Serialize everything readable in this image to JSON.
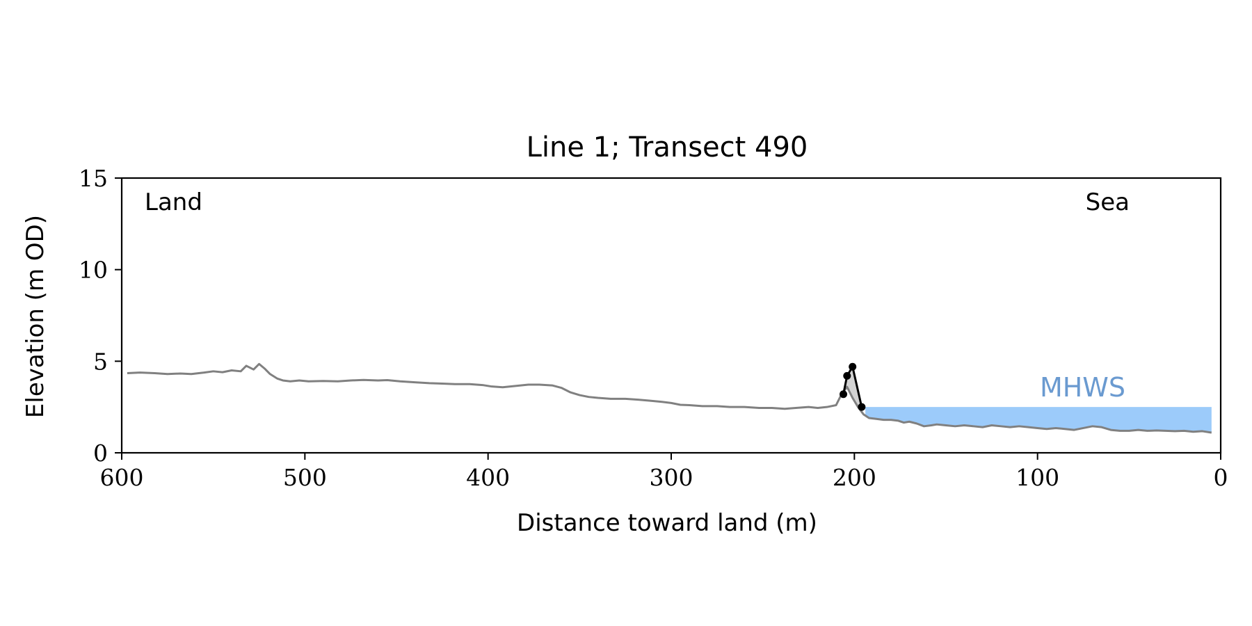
{
  "chart_data": {
    "type": "line",
    "title": "Line 1; Transect 490",
    "xlabel": "Distance toward land (m)",
    "ylabel": "Elevation (m OD)",
    "xlim": [
      600,
      0
    ],
    "ylim": [
      0,
      15
    ],
    "x_ticks": [
      600,
      500,
      400,
      300,
      200,
      100,
      0
    ],
    "y_ticks": [
      0,
      5,
      10,
      15
    ],
    "x_tick_labels": [
      "600",
      "500",
      "400",
      "300",
      "200",
      "100",
      "0"
    ],
    "y_tick_labels": [
      "0",
      "5",
      "10",
      "15"
    ],
    "grid": false,
    "legend": "none",
    "annotations": {
      "land": "Land",
      "sea": "Sea",
      "mhws": "MHWS"
    },
    "mhws_level": 2.5,
    "mhws_x_range": [
      5,
      194
    ],
    "colors": {
      "profile": "#808080",
      "dune": "#000000",
      "dune_fill": "#d3d3d3",
      "water": "#9ccbfa",
      "mhws_text": "#6a9ad0"
    },
    "series": [
      {
        "role": "profile",
        "x": [
          597,
          590,
          582,
          575,
          568,
          562,
          555,
          550,
          545,
          540,
          535,
          532,
          528,
          525,
          522,
          519,
          515,
          512,
          508,
          503,
          498,
          490,
          482,
          475,
          468,
          460,
          455,
          448,
          440,
          432,
          425,
          418,
          410,
          403,
          398,
          392,
          385,
          378,
          372,
          365,
          360,
          355,
          350,
          345,
          340,
          333,
          325,
          318,
          312,
          305,
          300,
          295,
          290,
          283,
          275,
          268,
          260,
          252,
          245,
          238,
          232,
          225,
          220,
          215,
          210,
          207,
          204,
          201,
          198,
          195,
          192,
          188,
          184,
          180,
          176,
          173,
          170,
          166,
          162,
          158,
          155,
          150,
          145,
          140,
          135,
          130,
          125,
          120,
          115,
          110,
          105,
          100,
          95,
          90,
          85,
          80,
          75,
          70,
          65,
          60,
          55,
          50,
          45,
          40,
          35,
          30,
          25,
          20,
          15,
          10,
          5
        ],
        "y": [
          4.35,
          4.38,
          4.35,
          4.3,
          4.33,
          4.3,
          4.38,
          4.45,
          4.4,
          4.5,
          4.45,
          4.75,
          4.55,
          4.85,
          4.6,
          4.3,
          4.05,
          3.95,
          3.9,
          3.95,
          3.9,
          3.92,
          3.9,
          3.95,
          3.98,
          3.95,
          3.97,
          3.9,
          3.85,
          3.8,
          3.78,
          3.75,
          3.75,
          3.7,
          3.62,
          3.58,
          3.65,
          3.72,
          3.72,
          3.68,
          3.55,
          3.3,
          3.15,
          3.05,
          3.0,
          2.95,
          2.95,
          2.9,
          2.85,
          2.78,
          2.72,
          2.62,
          2.6,
          2.55,
          2.55,
          2.5,
          2.5,
          2.45,
          2.45,
          2.4,
          2.45,
          2.5,
          2.45,
          2.5,
          2.6,
          3.2,
          3.6,
          3.0,
          2.5,
          2.1,
          1.9,
          1.85,
          1.8,
          1.8,
          1.75,
          1.65,
          1.7,
          1.6,
          1.45,
          1.5,
          1.55,
          1.5,
          1.45,
          1.5,
          1.45,
          1.4,
          1.5,
          1.45,
          1.4,
          1.45,
          1.4,
          1.35,
          1.3,
          1.35,
          1.3,
          1.25,
          1.35,
          1.45,
          1.4,
          1.25,
          1.2,
          1.2,
          1.25,
          1.2,
          1.22,
          1.2,
          1.18,
          1.2,
          1.15,
          1.18,
          1.1
        ]
      },
      {
        "role": "dune",
        "x": [
          206,
          204,
          201,
          196
        ],
        "y": [
          3.2,
          4.2,
          4.7,
          2.5
        ]
      }
    ]
  }
}
